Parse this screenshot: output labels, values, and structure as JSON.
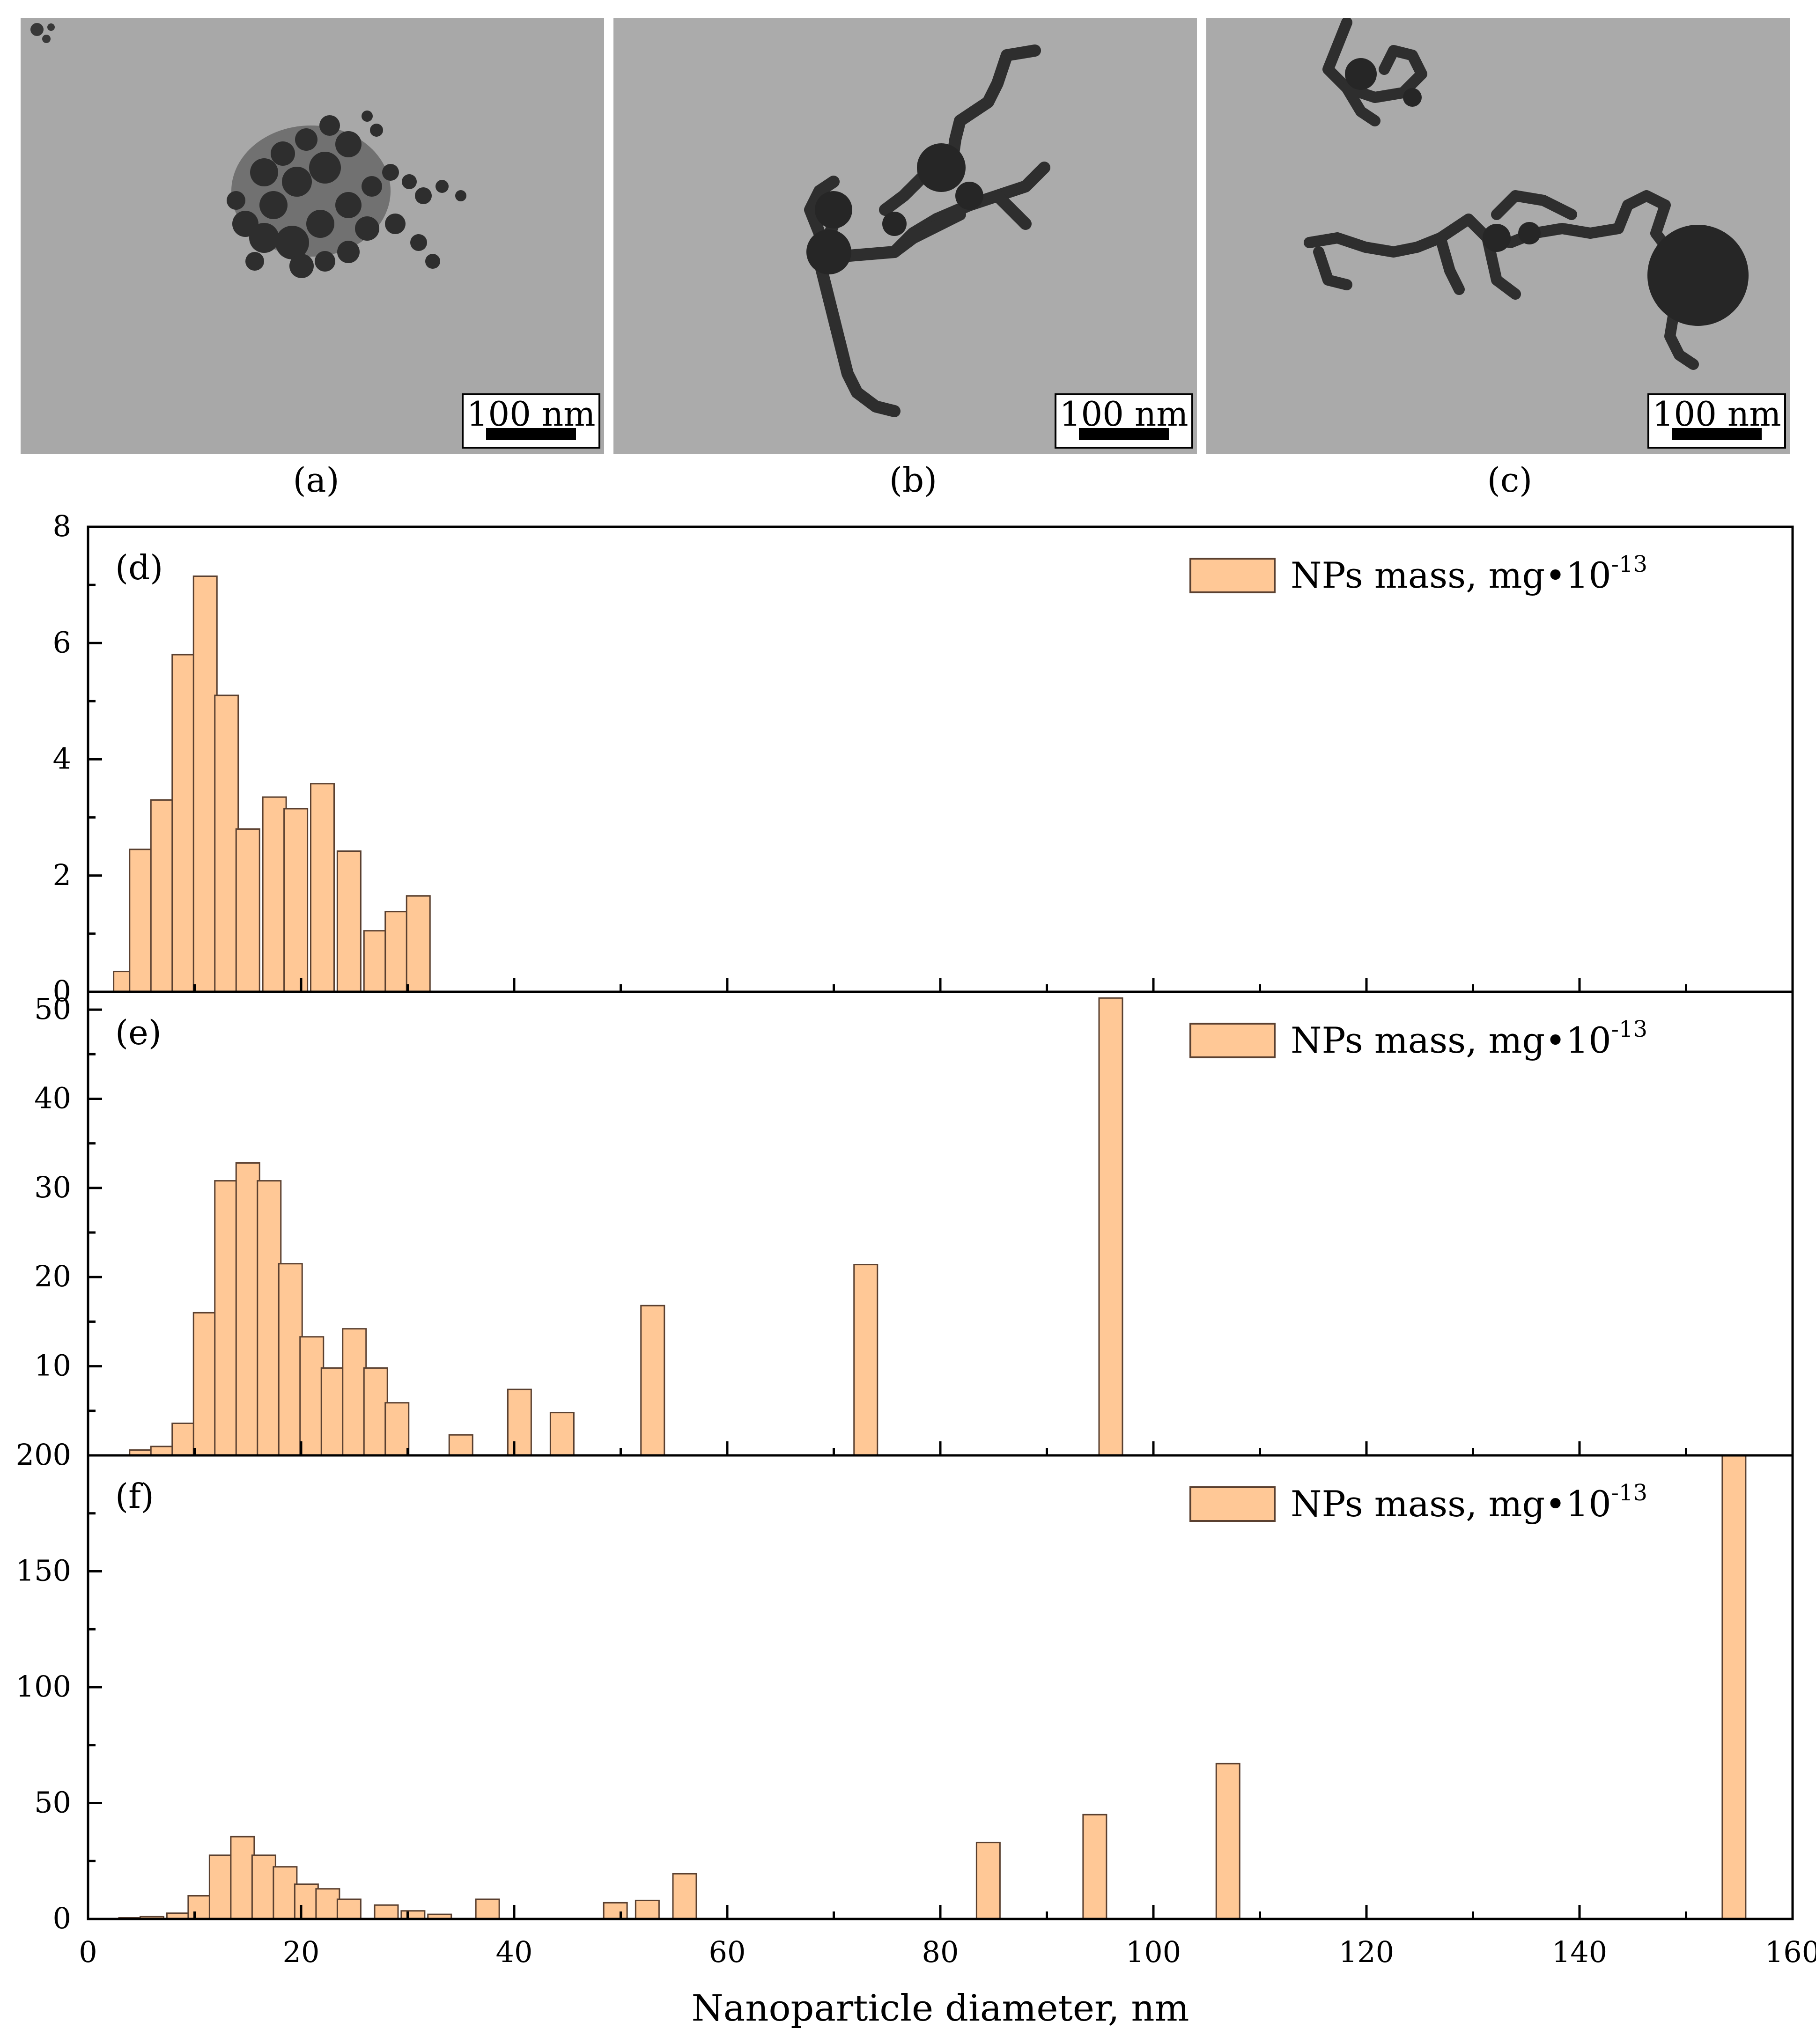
{
  "tem_panels": [
    {
      "id": "a",
      "caption": "(a)",
      "scalebar_label": "100 nm"
    },
    {
      "id": "b",
      "caption": "(b)",
      "scalebar_label": "100 nm"
    },
    {
      "id": "c",
      "caption": "(c)",
      "scalebar_label": "100 nm"
    }
  ],
  "colors": {
    "bar_fill": "#FFC896",
    "bar_stroke": "#5a4030",
    "axis": "#000000",
    "tem_bg": "#a9a9a9"
  },
  "chart_data": [
    {
      "type": "bar",
      "panel_label": "(d)",
      "legend": "NPs mass, mg•10",
      "legend_exp": "-13",
      "xlim": [
        0,
        160
      ],
      "ylim": [
        0,
        8
      ],
      "yticks": [
        0,
        2,
        4,
        6,
        8
      ],
      "ytick_labels": [
        "0",
        "2",
        "4",
        "6",
        "8"
      ],
      "x": [
        3.5,
        5,
        7,
        9,
        11,
        13,
        15,
        17.5,
        19.5,
        22,
        24.5,
        27,
        29,
        31
      ],
      "values": [
        0.35,
        2.45,
        3.3,
        5.8,
        7.15,
        5.1,
        2.8,
        3.35,
        3.15,
        3.58,
        2.42,
        1.05,
        1.38,
        1.65
      ]
    },
    {
      "type": "bar",
      "panel_label": "(e)",
      "legend": "NPs mass, mg•10",
      "legend_exp": "-13",
      "xlim": [
        0,
        160
      ],
      "ylim": [
        0,
        52
      ],
      "yticks": [
        0,
        10,
        20,
        30,
        40,
        50
      ],
      "ytick_labels": [
        "0",
        "10",
        "20",
        "30",
        "40",
        "50"
      ],
      "x": [
        5,
        7,
        9,
        11,
        13,
        15,
        17,
        19,
        21,
        23,
        25,
        27,
        29,
        35,
        40.5,
        44.5,
        53,
        73,
        96
      ],
      "values": [
        0.6,
        1.0,
        3.6,
        16,
        30.8,
        32.8,
        30.8,
        21.5,
        13.3,
        9.8,
        14.2,
        9.8,
        5.9,
        2.3,
        7.4,
        4.8,
        16.8,
        21.4,
        51.3
      ]
    },
    {
      "type": "bar",
      "panel_label": "(f)",
      "legend": "NPs mass, mg•10",
      "legend_exp": "-13",
      "xlim": [
        0,
        160
      ],
      "ylim": [
        0,
        200
      ],
      "yticks": [
        0,
        50,
        100,
        150,
        200
      ],
      "ytick_labels": [
        "0",
        "50",
        "100",
        "150",
        "200"
      ],
      "xticks": [
        0,
        20,
        40,
        60,
        80,
        100,
        120,
        140,
        160
      ],
      "xtick_labels": [
        "0",
        "20",
        "40",
        "60",
        "80",
        "100",
        "120",
        "140",
        "160"
      ],
      "xlabel": "Nanoparticle diameter, nm",
      "x": [
        4,
        6,
        8.5,
        10.5,
        12.5,
        14.5,
        16.5,
        18.5,
        20.5,
        22.5,
        24.5,
        28,
        30.5,
        33,
        37.5,
        49.5,
        52.5,
        56,
        84.5,
        94.5,
        107,
        154.5
      ],
      "values": [
        0.5,
        1,
        2.5,
        10,
        27.5,
        35.5,
        27.5,
        22.5,
        15,
        13,
        8.5,
        6,
        3.5,
        2,
        8.5,
        7,
        8,
        19.5,
        33,
        45,
        67,
        200
      ]
    }
  ]
}
